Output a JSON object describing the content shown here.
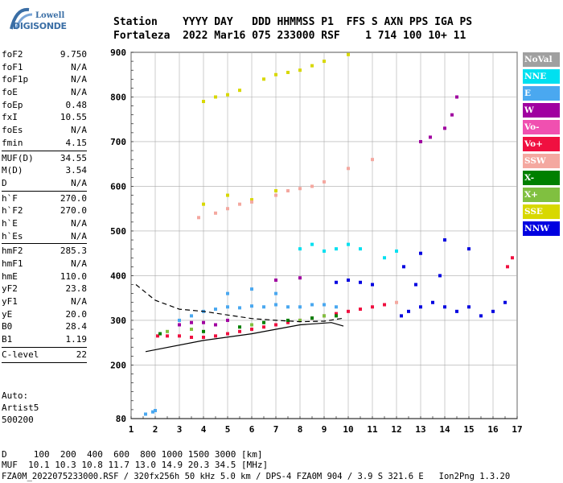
{
  "header": {
    "logo_top": "Lowell",
    "logo_bottom": "DIGISONDE",
    "line1": "Station    YYYY DAY   DDD HHMMSS P1  FFS S AXN PPS IGA PS",
    "line2": "Fortaleza  2022 Mar16 075 233000 RSF    1 714 100 10+ 11"
  },
  "sidebar": {
    "groups": [
      [
        [
          "foF2",
          "9.750"
        ],
        [
          "foF1",
          "N/A"
        ],
        [
          "foF1p",
          "N/A"
        ],
        [
          "foE",
          "N/A"
        ],
        [
          "foEp",
          "0.48"
        ],
        [
          "fxI",
          "10.55"
        ],
        [
          "foEs",
          "N/A"
        ],
        [
          "fmin",
          "4.15"
        ]
      ],
      [
        [
          "MUF(D)",
          "34.55"
        ],
        [
          "M(D)",
          "3.54"
        ],
        [
          "D",
          "N/A"
        ]
      ],
      [
        [
          "h`F",
          "270.0"
        ],
        [
          "h`F2",
          "270.0"
        ],
        [
          "h`E",
          "N/A"
        ],
        [
          "h`Es",
          "N/A"
        ]
      ],
      [
        [
          "hmF2",
          "285.3"
        ],
        [
          "hmF1",
          "N/A"
        ],
        [
          "hmE",
          "110.0"
        ],
        [
          "yF2",
          "23.8"
        ],
        [
          "yF1",
          "N/A"
        ],
        [
          "yE",
          "20.0"
        ],
        [
          "B0",
          "28.4"
        ],
        [
          "B1",
          "1.19"
        ]
      ],
      [
        [
          "C-level",
          "22"
        ]
      ]
    ],
    "auto": [
      "Auto:",
      "Artist5",
      "500200"
    ]
  },
  "footer": {
    "d_line": "D     100  200  400  600  800 1000 1500 3000 [km]",
    "muf_line": "MUF  10.1 10.3 10.8 11.7 13.0 14.9 20.3 34.5 [MHz]",
    "file_line": "FZA0M_2022075233000.RSF / 320fx256h 50 kHz 5.0 km / DPS-4 FZA0M 904 / 3.9 S 321.6 E   Ion2Png 1.3.20"
  },
  "legend": [
    {
      "label": "NoVal",
      "color": "#a0a0a0"
    },
    {
      "label": "NNE",
      "color": "#00e0f0"
    },
    {
      "label": "E",
      "color": "#4aa8f0"
    },
    {
      "label": "W",
      "color": "#a000a0"
    },
    {
      "label": "Vo-",
      "color": "#f050b0"
    },
    {
      "label": "Vo+",
      "color": "#f01040"
    },
    {
      "label": "SSW",
      "color": "#f4a8a0"
    },
    {
      "label": "X-",
      "color": "#008000"
    },
    {
      "label": "X+",
      "color": "#80c040"
    },
    {
      "label": "SSE",
      "color": "#d8d800"
    },
    {
      "label": "NNW",
      "color": "#0000e0"
    }
  ],
  "chart_data": {
    "type": "scatter",
    "xlabel": "",
    "ylabel": "",
    "xlim": [
      1,
      17
    ],
    "ylim": [
      80,
      900
    ],
    "x_ticks": [
      1,
      2,
      3,
      4,
      5,
      6,
      7,
      8,
      9,
      10,
      11,
      12,
      13,
      14,
      15,
      16,
      17
    ],
    "y_ticks": [
      80,
      200,
      300,
      400,
      500,
      600,
      700,
      800,
      900
    ],
    "grid": true,
    "series": [
      {
        "name": "E",
        "color": "#4aa8f0",
        "points": [
          [
            1.6,
            90
          ],
          [
            1.9,
            95
          ],
          [
            2.0,
            98
          ],
          [
            3.0,
            300
          ],
          [
            3.5,
            310
          ],
          [
            4,
            320
          ],
          [
            4.5,
            325
          ],
          [
            5,
            330
          ],
          [
            5.5,
            328
          ],
          [
            6,
            332
          ],
          [
            6.5,
            330
          ],
          [
            7,
            335
          ],
          [
            7.5,
            330
          ],
          [
            8,
            330
          ],
          [
            8.5,
            335
          ],
          [
            9,
            335
          ],
          [
            9.5,
            330
          ],
          [
            5,
            360
          ],
          [
            6,
            370
          ],
          [
            7,
            360
          ]
        ]
      },
      {
        "name": "Vo+",
        "color": "#f01040",
        "points": [
          [
            2.1,
            265
          ],
          [
            2.5,
            265
          ],
          [
            3,
            265
          ],
          [
            3.5,
            262
          ],
          [
            4,
            262
          ],
          [
            4.5,
            265
          ],
          [
            5,
            270
          ],
          [
            5.5,
            275
          ],
          [
            6,
            280
          ],
          [
            6.5,
            285
          ],
          [
            7,
            290
          ],
          [
            7.5,
            295
          ],
          [
            8,
            300
          ],
          [
            8.5,
            305
          ],
          [
            9,
            310
          ],
          [
            9.5,
            315
          ],
          [
            10,
            320
          ],
          [
            10.5,
            325
          ],
          [
            11,
            330
          ],
          [
            11.5,
            335
          ],
          [
            16.6,
            420
          ],
          [
            16.8,
            440
          ]
        ]
      },
      {
        "name": "W",
        "color": "#a000a0",
        "points": [
          [
            3,
            290
          ],
          [
            3.5,
            295
          ],
          [
            4,
            295
          ],
          [
            4.5,
            290
          ],
          [
            5,
            300
          ],
          [
            13,
            700
          ],
          [
            13.4,
            710
          ],
          [
            14,
            730
          ],
          [
            14.3,
            760
          ],
          [
            14.5,
            800
          ],
          [
            7,
            390
          ],
          [
            8,
            395
          ]
        ]
      },
      {
        "name": "NNW",
        "color": "#0000e0",
        "points": [
          [
            9.5,
            385
          ],
          [
            10,
            390
          ],
          [
            10.5,
            385
          ],
          [
            11,
            380
          ],
          [
            12.2,
            310
          ],
          [
            12.5,
            320
          ],
          [
            13,
            330
          ],
          [
            13.5,
            340
          ],
          [
            14,
            330
          ],
          [
            14.5,
            320
          ],
          [
            15,
            330
          ],
          [
            15.5,
            310
          ],
          [
            16,
            320
          ],
          [
            16.5,
            340
          ],
          [
            12.3,
            420
          ],
          [
            13,
            450
          ],
          [
            14,
            480
          ],
          [
            15,
            460
          ],
          [
            12.8,
            380
          ],
          [
            13.8,
            400
          ]
        ]
      },
      {
        "name": "SSE",
        "color": "#d8d800",
        "points": [
          [
            4,
            790
          ],
          [
            4.5,
            800
          ],
          [
            5,
            805
          ],
          [
            5.5,
            815
          ],
          [
            6.5,
            840
          ],
          [
            7,
            850
          ],
          [
            7.5,
            855
          ],
          [
            8,
            860
          ],
          [
            8.5,
            870
          ],
          [
            9,
            880
          ],
          [
            10,
            895
          ],
          [
            4,
            560
          ],
          [
            5,
            580
          ],
          [
            6,
            570
          ],
          [
            7,
            590
          ]
        ]
      },
      {
        "name": "SSW",
        "color": "#f4a8a0",
        "points": [
          [
            3.8,
            530
          ],
          [
            4.5,
            540
          ],
          [
            5,
            550
          ],
          [
            5.5,
            560
          ],
          [
            6,
            565
          ],
          [
            7,
            580
          ],
          [
            7.5,
            590
          ],
          [
            8,
            595
          ],
          [
            8.5,
            600
          ],
          [
            9,
            610
          ],
          [
            10,
            640
          ],
          [
            11,
            660
          ],
          [
            12,
            340
          ]
        ]
      },
      {
        "name": "NNE",
        "color": "#00e0f0",
        "points": [
          [
            8,
            460
          ],
          [
            8.5,
            470
          ],
          [
            9,
            455
          ],
          [
            9.5,
            460
          ],
          [
            10,
            470
          ],
          [
            10.5,
            460
          ],
          [
            11.5,
            440
          ],
          [
            12,
            455
          ]
        ]
      },
      {
        "name": "X-",
        "color": "#008000",
        "points": [
          [
            2.2,
            270
          ],
          [
            4,
            275
          ],
          [
            5.5,
            285
          ],
          [
            6.5,
            295
          ],
          [
            7.5,
            300
          ],
          [
            8.5,
            305
          ],
          [
            9.5,
            310
          ]
        ]
      },
      {
        "name": "X+",
        "color": "#80c040",
        "points": [
          [
            2.5,
            275
          ],
          [
            3.5,
            280
          ],
          [
            6,
            290
          ],
          [
            8,
            300
          ],
          [
            9,
            310
          ]
        ]
      }
    ],
    "curves": [
      {
        "name": "solid",
        "points": [
          [
            1.6,
            230
          ],
          [
            4,
            255
          ],
          [
            6,
            270
          ],
          [
            8,
            290
          ],
          [
            9.3,
            295
          ],
          [
            9.8,
            287
          ]
        ]
      },
      {
        "name": "dashed",
        "points": [
          [
            1.2,
            380
          ],
          [
            2,
            345
          ],
          [
            3,
            325
          ],
          [
            4,
            320
          ],
          [
            5,
            312
          ],
          [
            6,
            304
          ],
          [
            7,
            300
          ],
          [
            8,
            297
          ],
          [
            9,
            298
          ],
          [
            9.8,
            305
          ]
        ]
      }
    ]
  }
}
